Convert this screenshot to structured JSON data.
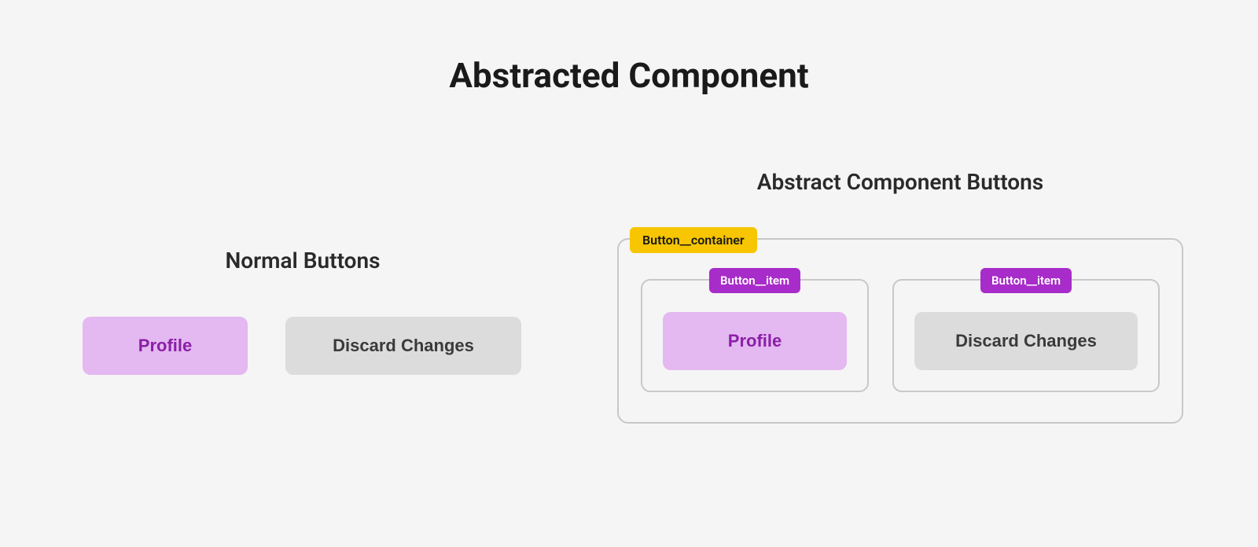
{
  "title": "Abstracted Component",
  "left": {
    "heading": "Normal Buttons",
    "buttons": {
      "primary": {
        "label": "Profile",
        "bg_color": "#e4b8f0",
        "text_color": "#8b1fa8"
      },
      "secondary": {
        "label": "Discard Changes",
        "bg_color": "#dcdcdc",
        "text_color": "#3a3a3a"
      }
    }
  },
  "right": {
    "heading": "Abstract Component Buttons",
    "container_label": "Button__container",
    "container_label_bg": "#f7c600",
    "container_label_text": "#1a1a1a",
    "container_border": "#c8c8c8",
    "items": [
      {
        "label": "Button__item",
        "label_bg": "#a82cc9",
        "label_text": "#ffffff",
        "button": {
          "label": "Profile",
          "bg_color": "#e4b8f0",
          "text_color": "#8b1fa8"
        }
      },
      {
        "label": "Button__item",
        "label_bg": "#a82cc9",
        "label_text": "#ffffff",
        "button": {
          "label": "Discard Changes",
          "bg_color": "#dcdcdc",
          "text_color": "#3a3a3a"
        }
      }
    ]
  },
  "styling": {
    "background": "#f5f5f5",
    "title_fontsize": 44,
    "heading_fontsize": 28,
    "button_fontsize": 22,
    "label_fontsize_container": 16,
    "label_fontsize_item": 15,
    "border_radius_button": 10,
    "border_radius_box": 14,
    "border_radius_label": 6,
    "border_width": 2
  }
}
